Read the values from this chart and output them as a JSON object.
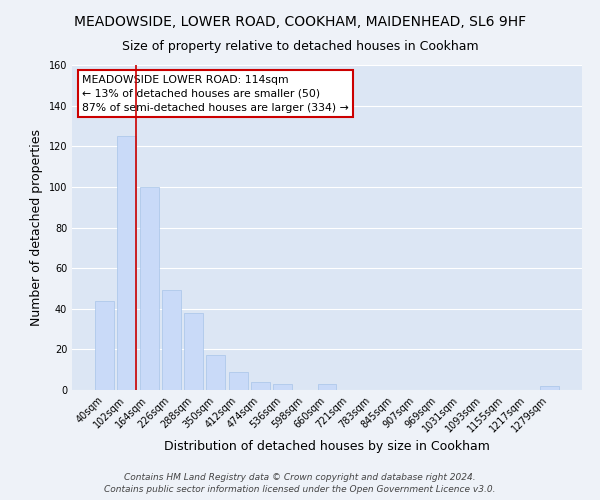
{
  "title": "MEADOWSIDE, LOWER ROAD, COOKHAM, MAIDENHEAD, SL6 9HF",
  "subtitle": "Size of property relative to detached houses in Cookham",
  "xlabel": "Distribution of detached houses by size in Cookham",
  "ylabel": "Number of detached properties",
  "bar_labels": [
    "40sqm",
    "102sqm",
    "164sqm",
    "226sqm",
    "288sqm",
    "350sqm",
    "412sqm",
    "474sqm",
    "536sqm",
    "598sqm",
    "660sqm",
    "721sqm",
    "783sqm",
    "845sqm",
    "907sqm",
    "969sqm",
    "1031sqm",
    "1093sqm",
    "1155sqm",
    "1217sqm",
    "1279sqm"
  ],
  "bar_heights": [
    44,
    125,
    100,
    49,
    38,
    17,
    9,
    4,
    3,
    0,
    3,
    0,
    0,
    0,
    0,
    0,
    0,
    0,
    0,
    0,
    2
  ],
  "bar_color": "#c9daf8",
  "bar_edge_color": "#a8c4e8",
  "vline_color": "#cc0000",
  "vline_x": 1.42,
  "ylim": [
    0,
    160
  ],
  "annotation_title": "MEADOWSIDE LOWER ROAD: 114sqm",
  "annotation_line1": "← 13% of detached houses are smaller (50)",
  "annotation_line2": "87% of semi-detached houses are larger (334) →",
  "annotation_box_facecolor": "#ffffff",
  "annotation_box_edgecolor": "#cc0000",
  "footer1": "Contains HM Land Registry data © Crown copyright and database right 2024.",
  "footer2": "Contains public sector information licensed under the Open Government Licence v3.0.",
  "bg_color": "#eef2f8",
  "plot_bg_color": "#dce6f4",
  "grid_color": "#ffffff",
  "title_fontsize": 10,
  "subtitle_fontsize": 9,
  "tick_fontsize": 7,
  "label_fontsize": 9,
  "footer_fontsize": 6.5
}
